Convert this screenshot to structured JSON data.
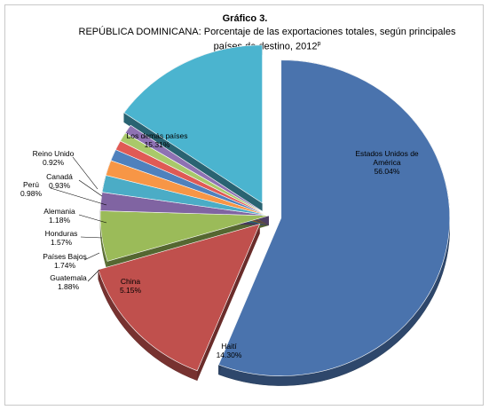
{
  "chart_data": {
    "type": "pie",
    "title": "Gráfico 3.",
    "subtitle": "REPÚBLICA DOMINICANA: Porcentaje de las exportaciones totales, según principales países de destino, 2012",
    "subtitle_sup": "p",
    "unit": "%",
    "slices": [
      {
        "name": "Estados Unidos de América",
        "label_lines": [
          "Estados Unidos de",
          "América"
        ],
        "value": 56.04,
        "display": "56.04%",
        "color": "#4a73ad"
      },
      {
        "name": "Haití",
        "label_lines": [
          "Haití"
        ],
        "value": 14.3,
        "display": "14.30%",
        "color": "#c0504d"
      },
      {
        "name": "China",
        "label_lines": [
          "China"
        ],
        "value": 5.15,
        "display": "5.15%",
        "color": "#9bbb59"
      },
      {
        "name": "Guatemala",
        "label_lines": [
          "Guatemala"
        ],
        "value": 1.88,
        "display": "1.88%",
        "color": "#8064a2"
      },
      {
        "name": "Países Bajos",
        "label_lines": [
          "Países Bajos"
        ],
        "value": 1.74,
        "display": "1.74%",
        "color": "#4bacc6"
      },
      {
        "name": "Honduras",
        "label_lines": [
          "Honduras"
        ],
        "value": 1.57,
        "display": "1.57%",
        "color": "#f79646"
      },
      {
        "name": "Alemania",
        "label_lines": [
          "Alemania"
        ],
        "value": 1.18,
        "display": "1.18%",
        "color": "#4f81bd"
      },
      {
        "name": "Perú",
        "label_lines": [
          "Perú"
        ],
        "value": 0.98,
        "display": "0.98%",
        "color": "#e05a55"
      },
      {
        "name": "Canadá",
        "label_lines": [
          "Canadá"
        ],
        "value": 0.93,
        "display": "0.93%",
        "color": "#a9c96a"
      },
      {
        "name": "Reino Unido",
        "label_lines": [
          "Reino Unido"
        ],
        "value": 0.92,
        "display": "0.92%",
        "color": "#8e72b3"
      },
      {
        "name": "Los demás países",
        "label_lines": [
          "Los demás países"
        ],
        "value": 15.31,
        "display": "15.31%",
        "color": "#4bb4cf"
      }
    ]
  }
}
